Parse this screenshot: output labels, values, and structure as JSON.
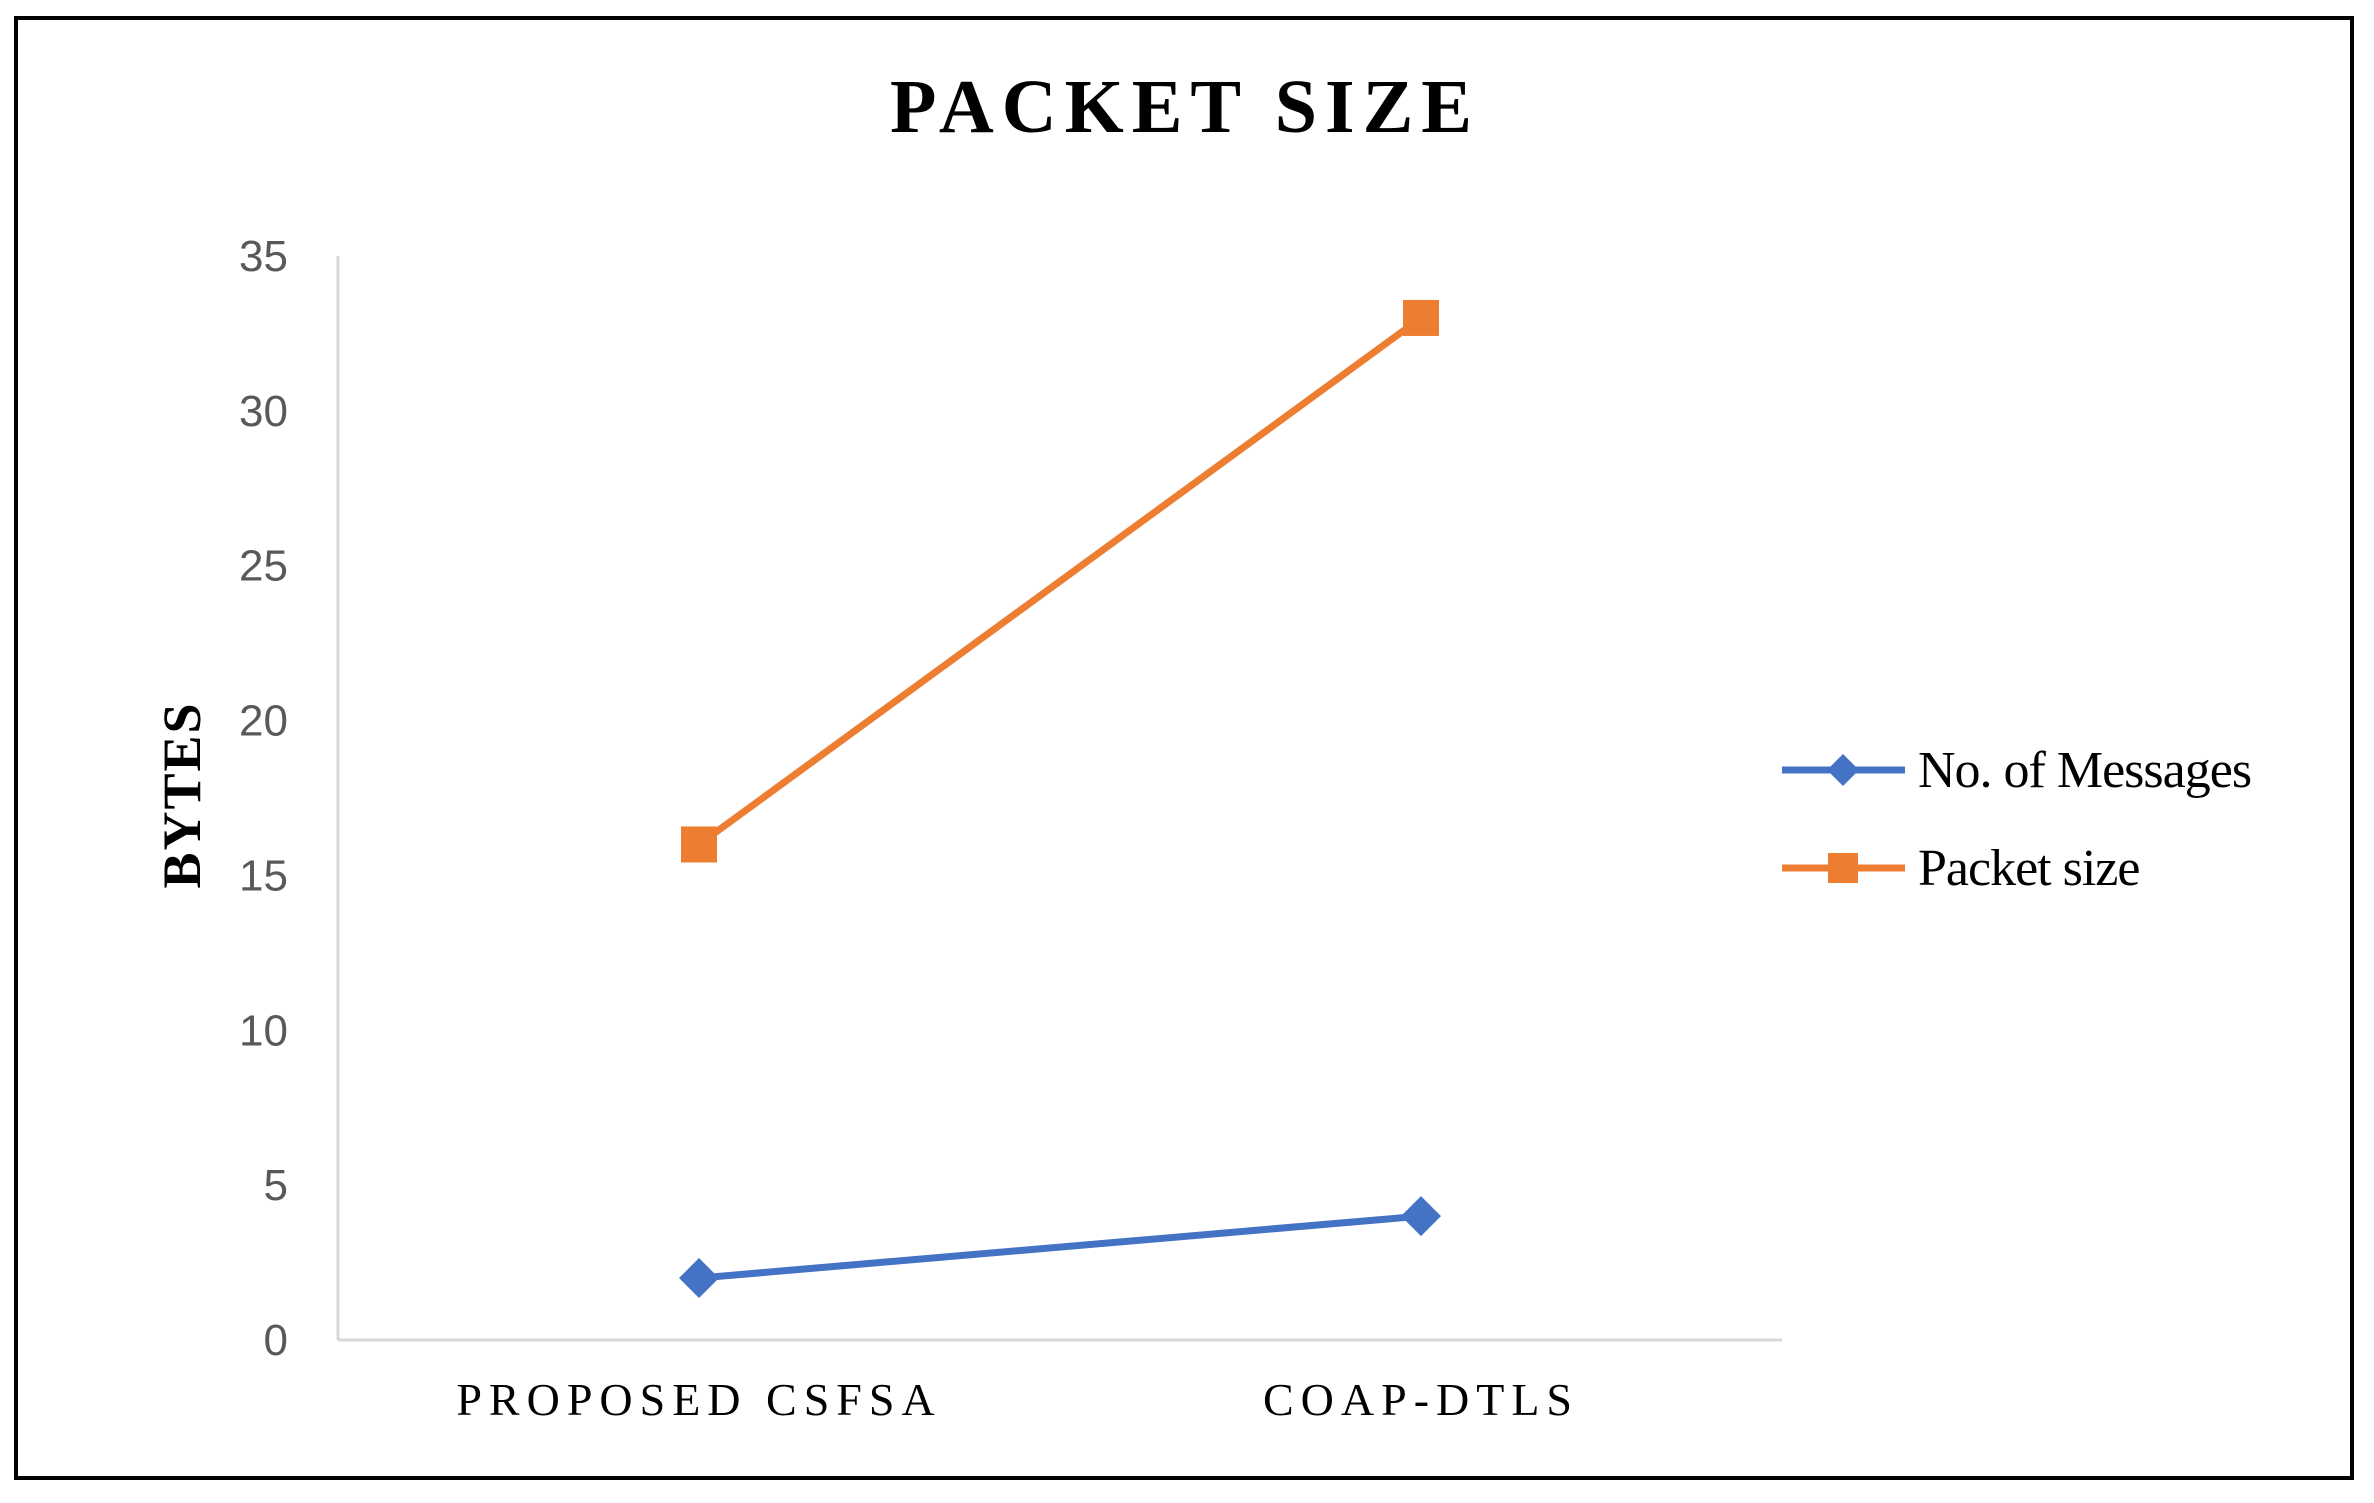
{
  "chart_data": {
    "type": "line",
    "title": "PACKET SIZE",
    "xlabel": "",
    "ylabel": "BYTES",
    "categories": [
      "PROPOSED CSFSA",
      "COAP-DTLS"
    ],
    "ylim": [
      0,
      35
    ],
    "yticks": [
      0,
      5,
      10,
      15,
      20,
      25,
      30,
      35
    ],
    "grid": false,
    "legend_position": "right",
    "series": [
      {
        "name": "No. of Messages",
        "values": [
          2,
          4
        ],
        "color": "#4472C4",
        "marker": "diamond"
      },
      {
        "name": "Packet size",
        "values": [
          16,
          33
        ],
        "color": "#ED7D31",
        "marker": "square"
      }
    ]
  }
}
